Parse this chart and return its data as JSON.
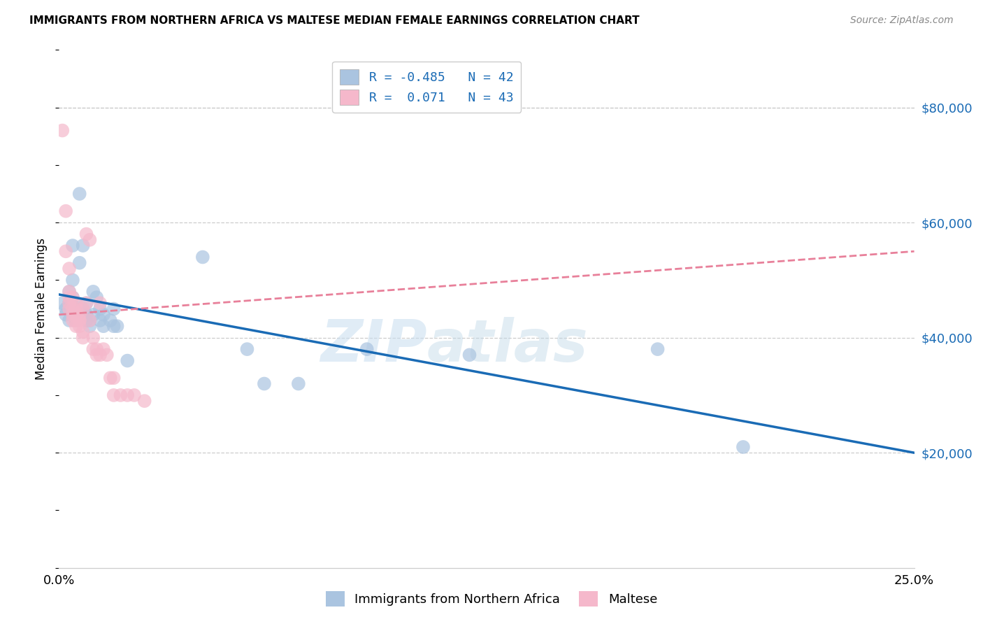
{
  "title": "IMMIGRANTS FROM NORTHERN AFRICA VS MALTESE MEDIAN FEMALE EARNINGS CORRELATION CHART",
  "source": "Source: ZipAtlas.com",
  "ylabel": "Median Female Earnings",
  "xlim": [
    0.0,
    0.25
  ],
  "ylim": [
    0,
    90000
  ],
  "xticks": [
    0.0,
    0.05,
    0.1,
    0.15,
    0.2,
    0.25
  ],
  "xticklabels": [
    "0.0%",
    "",
    "",
    "",
    "",
    "25.0%"
  ],
  "yticks": [
    20000,
    40000,
    60000,
    80000
  ],
  "yticklabels": [
    "$20,000",
    "$40,000",
    "$60,000",
    "$80,000"
  ],
  "blue_color": "#aac4e0",
  "pink_color": "#f5b8cb",
  "blue_line_color": "#1a6bb5",
  "pink_line_color": "#e8809a",
  "legend_r_blue": "-0.485",
  "legend_n_blue": "42",
  "legend_r_pink": " 0.071",
  "legend_n_pink": "43",
  "legend_label_blue": "Immigrants from Northern Africa",
  "legend_label_pink": "Maltese",
  "watermark_left": "ZIP",
  "watermark_right": "atlas",
  "blue_points": [
    [
      0.001,
      46000
    ],
    [
      0.002,
      45000
    ],
    [
      0.002,
      44000
    ],
    [
      0.003,
      48000
    ],
    [
      0.003,
      46000
    ],
    [
      0.003,
      43000
    ],
    [
      0.004,
      47000
    ],
    [
      0.004,
      50000
    ],
    [
      0.004,
      56000
    ],
    [
      0.005,
      46000
    ],
    [
      0.005,
      44000
    ],
    [
      0.005,
      45000
    ],
    [
      0.005,
      43000
    ],
    [
      0.006,
      65000
    ],
    [
      0.006,
      53000
    ],
    [
      0.007,
      56000
    ],
    [
      0.007,
      45000
    ],
    [
      0.008,
      46000
    ],
    [
      0.008,
      44000
    ],
    [
      0.008,
      43000
    ],
    [
      0.009,
      42000
    ],
    [
      0.009,
      43000
    ],
    [
      0.01,
      44000
    ],
    [
      0.01,
      48000
    ],
    [
      0.011,
      47000
    ],
    [
      0.012,
      45000
    ],
    [
      0.012,
      43000
    ],
    [
      0.013,
      44000
    ],
    [
      0.013,
      42000
    ],
    [
      0.015,
      43000
    ],
    [
      0.016,
      45000
    ],
    [
      0.016,
      42000
    ],
    [
      0.017,
      42000
    ],
    [
      0.02,
      36000
    ],
    [
      0.042,
      54000
    ],
    [
      0.055,
      38000
    ],
    [
      0.06,
      32000
    ],
    [
      0.07,
      32000
    ],
    [
      0.09,
      38000
    ],
    [
      0.12,
      37000
    ],
    [
      0.175,
      38000
    ],
    [
      0.2,
      21000
    ]
  ],
  "pink_points": [
    [
      0.001,
      76000
    ],
    [
      0.002,
      62000
    ],
    [
      0.002,
      55000
    ],
    [
      0.003,
      52000
    ],
    [
      0.003,
      48000
    ],
    [
      0.003,
      47000
    ],
    [
      0.003,
      46000
    ],
    [
      0.003,
      45000
    ],
    [
      0.004,
      47000
    ],
    [
      0.004,
      44000
    ],
    [
      0.004,
      43000
    ],
    [
      0.004,
      45000
    ],
    [
      0.005,
      46000
    ],
    [
      0.005,
      44000
    ],
    [
      0.005,
      43000
    ],
    [
      0.005,
      42000
    ],
    [
      0.005,
      45000
    ],
    [
      0.006,
      43000
    ],
    [
      0.006,
      44000
    ],
    [
      0.006,
      42000
    ],
    [
      0.006,
      43000
    ],
    [
      0.007,
      41000
    ],
    [
      0.007,
      40000
    ],
    [
      0.007,
      45000
    ],
    [
      0.008,
      46000
    ],
    [
      0.008,
      58000
    ],
    [
      0.009,
      57000
    ],
    [
      0.009,
      43000
    ],
    [
      0.01,
      40000
    ],
    [
      0.01,
      38000
    ],
    [
      0.011,
      37000
    ],
    [
      0.011,
      38000
    ],
    [
      0.012,
      37000
    ],
    [
      0.012,
      46000
    ],
    [
      0.013,
      38000
    ],
    [
      0.014,
      37000
    ],
    [
      0.015,
      33000
    ],
    [
      0.016,
      33000
    ],
    [
      0.016,
      30000
    ],
    [
      0.018,
      30000
    ],
    [
      0.02,
      30000
    ],
    [
      0.022,
      30000
    ],
    [
      0.025,
      29000
    ]
  ],
  "blue_line": [
    [
      0.0,
      47500
    ],
    [
      0.25,
      20000
    ]
  ],
  "pink_line": [
    [
      0.0,
      44000
    ],
    [
      0.25,
      55000
    ]
  ]
}
